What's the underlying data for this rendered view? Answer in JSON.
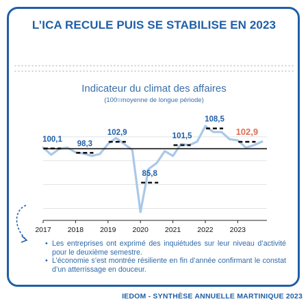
{
  "headline": "L’ICA RECULE PUIS SE STABILISE EN 2023",
  "chart_data": {
    "type": "line",
    "title": "Indicateur du climat des affaires",
    "subtitle": "(100=moyenne de longue période)",
    "x_ticks": [
      "2017",
      "2018",
      "2019",
      "2020",
      "2021",
      "2022",
      "2023"
    ],
    "x_range": [
      2017.0,
      2023.9
    ],
    "y_range": [
      70,
      115
    ],
    "reference_line": 100,
    "series": [
      {
        "x": [
          2017.0,
          2017.25,
          2017.5,
          2017.75,
          2018.0,
          2018.25,
          2018.5,
          2018.75,
          2019.0,
          2019.25,
          2019.5,
          2019.75,
          2020.0,
          2020.25,
          2020.5,
          2020.75,
          2021.0,
          2021.25,
          2021.5,
          2021.75,
          2022.0,
          2022.25,
          2022.5,
          2022.75,
          2023.0,
          2023.25,
          2023.5,
          2023.75
        ],
        "y": [
          100.5,
          97.5,
          100,
          100.5,
          98.5,
          98,
          97,
          97.8,
          102,
          104.5,
          102,
          99.5,
          73.5,
          91.5,
          94,
          99,
          97,
          102,
          101.5,
          103,
          109.5,
          107,
          107,
          104,
          103.5,
          100.5,
          101.5,
          103
        ]
      }
    ],
    "annual_averages": [
      {
        "year": "2017",
        "value": 100.1
      },
      {
        "year": "2018",
        "value": 98.3
      },
      {
        "year": "2019",
        "value": 102.9
      },
      {
        "year": "2020",
        "value": 85.8
      },
      {
        "year": "2021",
        "value": 101.5
      },
      {
        "year": "2022",
        "value": 108.5
      },
      {
        "year": "2023",
        "value": 102.9
      }
    ],
    "labels": [
      "100,1",
      "98,3",
      "102,9",
      "85,8",
      "101,5",
      "108,5",
      "102,9"
    ],
    "colors": {
      "line": "#a9c8e8",
      "average": "#111111",
      "label": "#1f5fa6",
      "highlight": "#e06b52",
      "grid": "#dfe3e7",
      "reference": "#111111"
    }
  },
  "bullets": [
    "Les entreprises ont exprimé des inquiétudes sur leur niveau d’activité pour le deuxième semestre.",
    "L’économie s’est montrée résiliente en fin d’année confirmant le constat d’un atterrissage en douceur."
  ],
  "footer": "IEDOM - SYNTHÈSE ANNUELLE MARTINIQUE 2023"
}
